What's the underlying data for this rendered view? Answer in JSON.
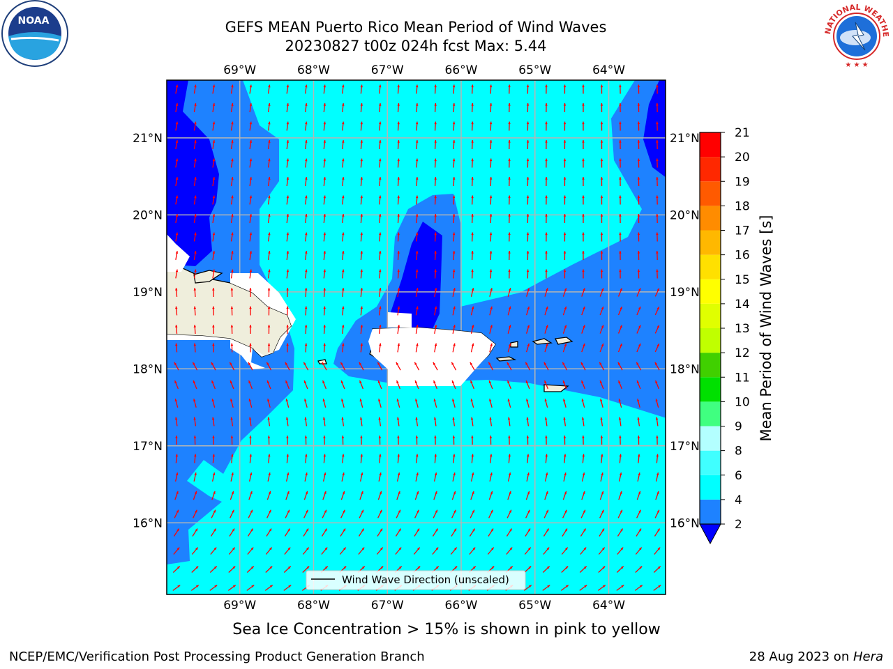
{
  "title": {
    "line1": "GEFS MEAN Puerto Rico Mean Period of Wind Waves",
    "line2": "20230827 t00z 024h fcst   Max: 5.44"
  },
  "logos": {
    "left": {
      "icon": "noaa-logo",
      "text": "NOAA"
    },
    "right": {
      "icon": "nws-logo",
      "text": "NATIONAL WEATHER SERVICE"
    }
  },
  "map": {
    "lon_labels": [
      "69°W",
      "68°W",
      "67°W",
      "66°W",
      "65°W",
      "64°W"
    ],
    "lat_labels": [
      "21°N",
      "20°N",
      "19°N",
      "18°N",
      "17°N",
      "16°N"
    ],
    "extent": {
      "lon": [
        -69.99,
        -63.23
      ],
      "lat": [
        15.07,
        21.75
      ]
    },
    "legend_label": "Wind Wave Direction (unscaled)",
    "arrow_color": "#ff0000"
  },
  "colorbar": {
    "label": "Mean Period of Wind Waves [s]",
    "ticks": [
      "2",
      "4",
      "6",
      "8",
      "9",
      "10",
      "11",
      "12",
      "13",
      "14",
      "15",
      "16",
      "17",
      "18",
      "19",
      "20",
      "21"
    ],
    "colors": [
      "#0000ff",
      "#1e82ff",
      "#00ffff",
      "#40ffff",
      "#b3ffff",
      "#40ff80",
      "#00e000",
      "#40d000",
      "#c0ff00",
      "#e0ff00",
      "#ffff00",
      "#ffe000",
      "#ffb800",
      "#ff8c00",
      "#ff5a00",
      "#ff2800",
      "#ff0000"
    ]
  },
  "note": "Sea Ice Concentration > 15% is shown in pink to yellow",
  "footer": {
    "left": "NCEP/EMC/Verification Post Processing Product Generation Branch",
    "right_date": "28 Aug 2023 on ",
    "right_host": "Hera"
  }
}
